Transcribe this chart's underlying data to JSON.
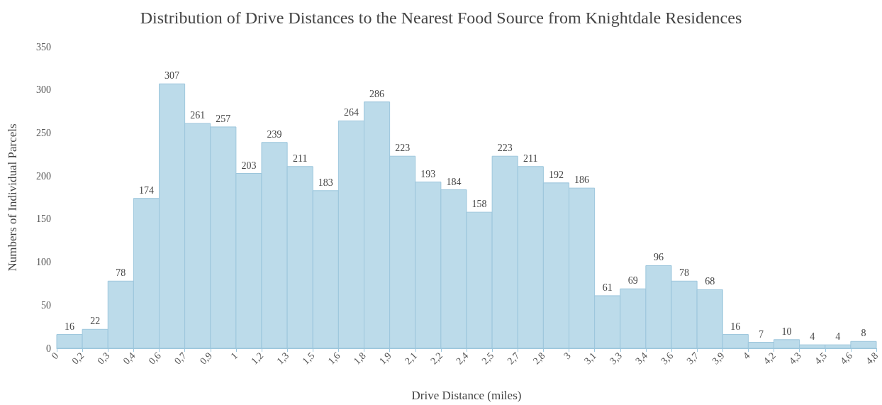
{
  "chart_data": {
    "type": "histogram",
    "title": "Distribution of Drive Distances to the Nearest Food Source from Knightdale Residences",
    "xlabel": "Drive Distance (miles)",
    "ylabel": "Numbers of Individual Parcels",
    "bins": [
      0,
      0.15,
      0.3,
      0.45,
      0.6,
      0.75,
      0.9,
      1.05,
      1.2,
      1.35,
      1.5,
      1.65,
      1.8,
      1.95,
      2.1,
      2.25,
      2.4,
      2.55,
      2.7,
      2.85,
      3,
      3.15,
      3.3,
      3.45,
      3.6,
      3.75,
      3.9,
      4.05,
      4.2,
      4.35,
      4.5,
      4.65,
      4.8
    ],
    "values": [
      16,
      22,
      78,
      174,
      307,
      261,
      257,
      203,
      239,
      211,
      183,
      264,
      286,
      223,
      193,
      184,
      158,
      223,
      211,
      192,
      186,
      61,
      69,
      96,
      78,
      68,
      16,
      7,
      10,
      4,
      4,
      8
    ],
    "color": "#bcdbea",
    "data_labels": true,
    "grid": false,
    "xlim": [
      0,
      4.8
    ],
    "xticks": [
      0,
      {
        "value": 0.15,
        "label": "0,2"
      },
      {
        "value": 0.3,
        "label": "0,3"
      },
      {
        "value": 0.45,
        "label": "0,4"
      },
      {
        "value": 0.6,
        "label": "0,6"
      },
      {
        "value": 0.75,
        "label": "0,7"
      },
      {
        "value": 0.9,
        "label": "0,9"
      },
      {
        "value": 1.05,
        "label": "1"
      },
      {
        "value": 1.2,
        "label": "1,2"
      },
      {
        "value": 1.35,
        "label": "1,3"
      },
      {
        "value": 1.5,
        "label": "1,5"
      },
      {
        "value": 1.65,
        "label": "1,6"
      },
      {
        "value": 1.8,
        "label": "1,8"
      },
      {
        "value": 1.95,
        "label": "1,9"
      },
      {
        "value": 2.1,
        "label": "2,1"
      },
      {
        "value": 2.25,
        "label": "2,2"
      },
      {
        "value": 2.4,
        "label": "2,4"
      },
      {
        "value": 2.55,
        "label": "2,5"
      },
      {
        "value": 2.7,
        "label": "2,7"
      },
      {
        "value": 2.85,
        "label": "2,8"
      },
      3,
      {
        "value": 3.15,
        "label": "3,1"
      },
      {
        "value": 3.3,
        "label": "3,3"
      },
      {
        "value": 3.45,
        "label": "3,4"
      },
      {
        "value": 3.6,
        "label": "3,6"
      },
      {
        "value": 3.75,
        "label": "3,7"
      },
      {
        "value": 3.9,
        "label": "3,9"
      },
      {
        "value": 4.05,
        "label": "4"
      },
      {
        "value": 4.2,
        "label": "4,2"
      },
      {
        "value": 4.35,
        "label": "4,3"
      },
      {
        "value": 4.5,
        "label": "4,5"
      },
      {
        "value": 4.65,
        "label": "4,6"
      },
      {
        "value": 4.8,
        "label": "4,8"
      }
    ],
    "ylim": [
      0,
      350
    ],
    "yticks": [
      0,
      50,
      100,
      150,
      200,
      250,
      300,
      350
    ]
  }
}
